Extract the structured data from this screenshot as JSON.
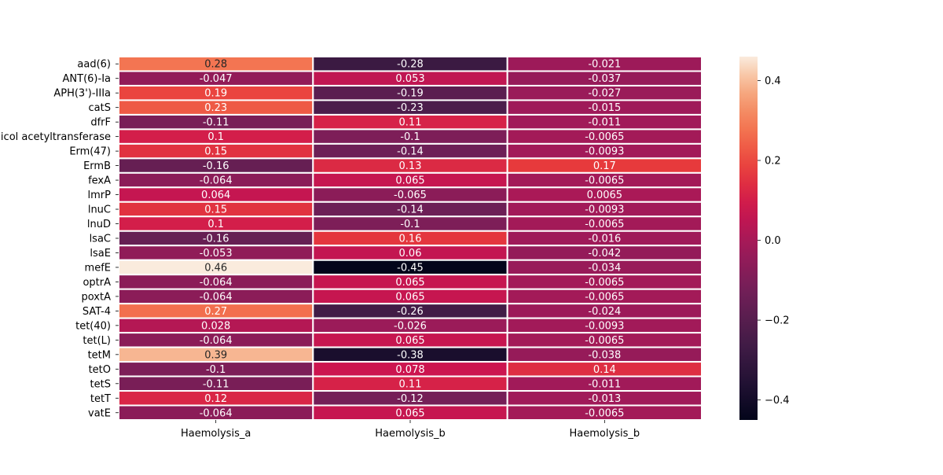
{
  "chart_data": {
    "type": "heatmap",
    "title": "",
    "xlabel": "",
    "ylabel": "",
    "columns": [
      "Haemolysis_a",
      "Haemolysis_b",
      "Haemolysis_b"
    ],
    "rows": [
      "aad(6)",
      "ANT(6)-Ia",
      "APH(3')-IIIa",
      "catS",
      "dfrF",
      "chloramphenicol acetyltransferase",
      "Erm(47)",
      "ErmB",
      "fexA",
      "lmrP",
      "lnuC",
      "lnuD",
      "lsaC",
      "lsaE",
      "mefE",
      "optrA",
      "poxtA",
      "SAT-4",
      "tet(40)",
      "tet(L)",
      "tetM",
      "tetO",
      "tetS",
      "tetT",
      "vatE"
    ],
    "values": [
      [
        0.28,
        -0.28,
        -0.021
      ],
      [
        -0.047,
        0.053,
        -0.037
      ],
      [
        0.19,
        -0.19,
        -0.027
      ],
      [
        0.23,
        -0.23,
        -0.015
      ],
      [
        -0.11,
        0.11,
        -0.011
      ],
      [
        0.1,
        -0.1,
        -0.0065
      ],
      [
        0.15,
        -0.14,
        -0.0093
      ],
      [
        -0.16,
        0.13,
        0.17
      ],
      [
        -0.064,
        0.065,
        -0.0065
      ],
      [
        0.064,
        -0.065,
        0.0065
      ],
      [
        0.15,
        -0.14,
        -0.0093
      ],
      [
        0.1,
        -0.1,
        -0.0065
      ],
      [
        -0.16,
        0.16,
        -0.016
      ],
      [
        -0.053,
        0.06,
        -0.042
      ],
      [
        0.46,
        -0.45,
        -0.034
      ],
      [
        -0.064,
        0.065,
        -0.0065
      ],
      [
        -0.064,
        0.065,
        -0.0065
      ],
      [
        0.27,
        -0.26,
        -0.024
      ],
      [
        0.028,
        -0.026,
        -0.0093
      ],
      [
        -0.064,
        0.065,
        -0.0065
      ],
      [
        0.39,
        -0.38,
        -0.038
      ],
      [
        -0.1,
        0.078,
        0.14
      ],
      [
        -0.11,
        0.11,
        -0.011
      ],
      [
        0.12,
        -0.12,
        -0.013
      ],
      [
        -0.064,
        0.065,
        -0.0065
      ]
    ],
    "annotations": true,
    "colormap": "rocket",
    "vmin": -0.45,
    "vmax": 0.46,
    "colorbar": {
      "ticks": [
        0.4,
        0.2,
        0.0,
        -0.2,
        -0.4
      ],
      "tick_labels": [
        "0.4",
        "0.2",
        "0.0",
        "−0.2",
        "−0.4"
      ]
    },
    "grid": false,
    "legend": "colorbar-right"
  }
}
